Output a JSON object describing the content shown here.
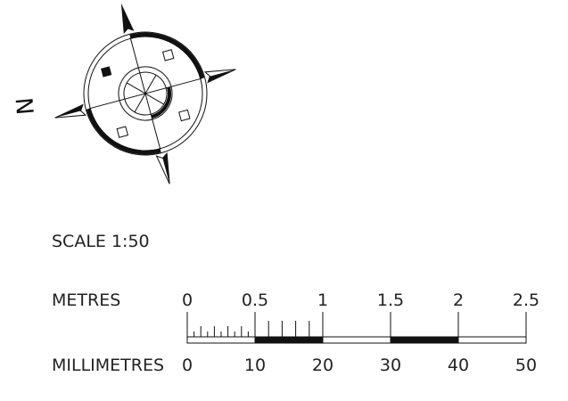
{
  "compass": {
    "north_letter": "N"
  },
  "scale": {
    "scale_label": "SCALE 1:50",
    "metres_label": "METRES",
    "millimetres_label": "MILLIMETRES",
    "metre_ticks": [
      "0",
      "0.5",
      "1",
      "1.5",
      "2",
      "2.5"
    ],
    "millimetre_ticks": [
      "0",
      "10",
      "20",
      "30",
      "40",
      "50"
    ]
  }
}
